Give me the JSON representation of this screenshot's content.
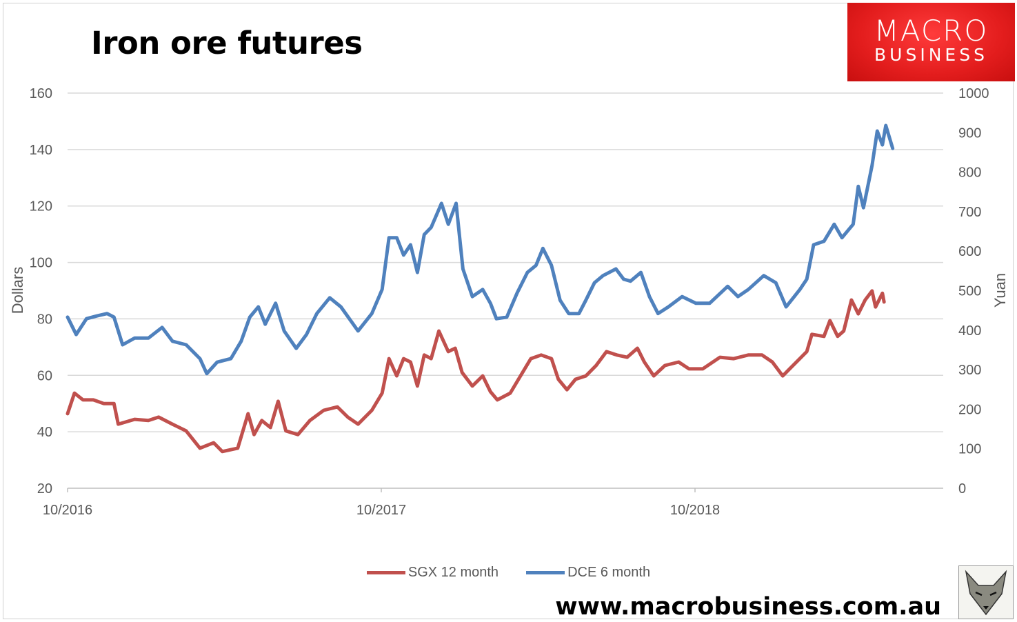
{
  "branding": {
    "logo_line1": "MACRO",
    "logo_line2": "BUSINESS",
    "url": "www.macrobusiness.com.au",
    "logo_color": "#e31d1d"
  },
  "chart_data": {
    "type": "line",
    "title": "Iron ore futures",
    "ylabel": "Dollars",
    "y2label": "Yuan",
    "ylim": [
      20,
      160
    ],
    "yticks": [
      20,
      40,
      60,
      80,
      100,
      120,
      140,
      160
    ],
    "y2lim": [
      0,
      1000
    ],
    "y2ticks": [
      0,
      100,
      200,
      300,
      400,
      500,
      600,
      700,
      800,
      900,
      1000
    ],
    "xticks": [
      {
        "date": "2016-10-01",
        "label": "10/2016"
      },
      {
        "date": "2017-10-01",
        "label": "10/2017"
      },
      {
        "date": "2018-10-01",
        "label": "10/2018"
      }
    ],
    "xlim": [
      "2016-10-01",
      "2019-11-01"
    ],
    "grid": true,
    "legend": "bottom",
    "series": [
      {
        "name": "SGX 12 month",
        "axis": "left",
        "color": "#c0504d",
        "points": [
          [
            "2016-10-01",
            46.4
          ],
          [
            "2016-10-09",
            53.7
          ],
          [
            "2016-10-19",
            51.3
          ],
          [
            "2016-10-31",
            51.3
          ],
          [
            "2016-11-12",
            50
          ],
          [
            "2016-11-24",
            50
          ],
          [
            "2016-11-29",
            42.7
          ],
          [
            "2016-12-18",
            44.4
          ],
          [
            "2017-01-03",
            44
          ],
          [
            "2017-01-15",
            45.2
          ],
          [
            "2017-01-31",
            42.7
          ],
          [
            "2017-02-16",
            40.3
          ],
          [
            "2017-03-04",
            34.2
          ],
          [
            "2017-03-20",
            36.1
          ],
          [
            "2017-03-30",
            33
          ],
          [
            "2017-04-17",
            34.2
          ],
          [
            "2017-04-29",
            46.4
          ],
          [
            "2017-05-06",
            39
          ],
          [
            "2017-05-15",
            44
          ],
          [
            "2017-05-25",
            41.5
          ],
          [
            "2017-06-03",
            50.8
          ],
          [
            "2017-06-12",
            40.3
          ],
          [
            "2017-06-26",
            39
          ],
          [
            "2017-07-10",
            44
          ],
          [
            "2017-07-26",
            47.6
          ],
          [
            "2017-08-11",
            48.8
          ],
          [
            "2017-08-23",
            45.2
          ],
          [
            "2017-09-04",
            42.7
          ],
          [
            "2017-09-20",
            47.6
          ],
          [
            "2017-10-02",
            53.7
          ],
          [
            "2017-10-10",
            65.9
          ],
          [
            "2017-10-19",
            59.8
          ],
          [
            "2017-10-27",
            65.9
          ],
          [
            "2017-11-04",
            64.7
          ],
          [
            "2017-11-12",
            56.2
          ],
          [
            "2017-11-20",
            67.2
          ],
          [
            "2017-11-28",
            65.9
          ],
          [
            "2017-12-07",
            75.7
          ],
          [
            "2017-12-18",
            68.4
          ],
          [
            "2017-12-26",
            69.6
          ],
          [
            "2018-01-03",
            61
          ],
          [
            "2018-01-15",
            56.2
          ],
          [
            "2018-01-27",
            59.8
          ],
          [
            "2018-02-05",
            54.2
          ],
          [
            "2018-02-13",
            51.3
          ],
          [
            "2018-02-28",
            53.7
          ],
          [
            "2018-03-12",
            59.8
          ],
          [
            "2018-03-24",
            65.9
          ],
          [
            "2018-04-05",
            67.2
          ],
          [
            "2018-04-17",
            65.9
          ],
          [
            "2018-04-25",
            58.6
          ],
          [
            "2018-05-05",
            54.9
          ],
          [
            "2018-05-15",
            58.6
          ],
          [
            "2018-05-27",
            59.8
          ],
          [
            "2018-06-08",
            63.5
          ],
          [
            "2018-06-20",
            68.4
          ],
          [
            "2018-07-02",
            67.2
          ],
          [
            "2018-07-14",
            66.4
          ],
          [
            "2018-07-26",
            69.6
          ],
          [
            "2018-08-03",
            64.7
          ],
          [
            "2018-08-14",
            59.8
          ],
          [
            "2018-08-27",
            63.5
          ],
          [
            "2018-09-12",
            64.7
          ],
          [
            "2018-09-24",
            62.3
          ],
          [
            "2018-10-10",
            62.3
          ],
          [
            "2018-10-30",
            66.4
          ],
          [
            "2018-11-15",
            65.9
          ],
          [
            "2018-12-02",
            67.2
          ],
          [
            "2018-12-18",
            67.2
          ],
          [
            "2018-12-30",
            64.7
          ],
          [
            "2019-01-11",
            59.8
          ],
          [
            "2019-01-27",
            64.7
          ],
          [
            "2019-02-08",
            68.4
          ],
          [
            "2019-02-14",
            74.5
          ],
          [
            "2019-02-28",
            73.8
          ],
          [
            "2019-03-07",
            79.4
          ],
          [
            "2019-03-16",
            73.8
          ],
          [
            "2019-03-23",
            75.7
          ],
          [
            "2019-04-01",
            86.7
          ],
          [
            "2019-04-09",
            81.8
          ],
          [
            "2019-04-17",
            86.7
          ],
          [
            "2019-04-25",
            89.9
          ],
          [
            "2019-04-29",
            84.2
          ],
          [
            "2019-05-07",
            89.1
          ],
          [
            "2019-05-09",
            86
          ]
        ]
      },
      {
        "name": "DCE 6 month",
        "axis": "right",
        "color": "#4f81bd",
        "points": [
          [
            "2016-10-01",
            433
          ],
          [
            "2016-10-11",
            389
          ],
          [
            "2016-10-23",
            429
          ],
          [
            "2016-11-04",
            436
          ],
          [
            "2016-11-16",
            442
          ],
          [
            "2016-11-24",
            433
          ],
          [
            "2016-12-04",
            363
          ],
          [
            "2016-12-18",
            380
          ],
          [
            "2017-01-03",
            380
          ],
          [
            "2017-01-19",
            407
          ],
          [
            "2017-01-31",
            372
          ],
          [
            "2017-02-16",
            363
          ],
          [
            "2017-03-04",
            328
          ],
          [
            "2017-03-12",
            290
          ],
          [
            "2017-03-24",
            319
          ],
          [
            "2017-04-09",
            328
          ],
          [
            "2017-04-21",
            372
          ],
          [
            "2017-05-01",
            433
          ],
          [
            "2017-05-11",
            459
          ],
          [
            "2017-05-19",
            415
          ],
          [
            "2017-05-31",
            468
          ],
          [
            "2017-06-10",
            398
          ],
          [
            "2017-06-24",
            354
          ],
          [
            "2017-07-06",
            389
          ],
          [
            "2017-07-18",
            442
          ],
          [
            "2017-08-02",
            482
          ],
          [
            "2017-08-15",
            459
          ],
          [
            "2017-09-04",
            398
          ],
          [
            "2017-09-20",
            442
          ],
          [
            "2017-10-02",
            503
          ],
          [
            "2017-10-10",
            634
          ],
          [
            "2017-10-19",
            634
          ],
          [
            "2017-10-27",
            590
          ],
          [
            "2017-11-04",
            616
          ],
          [
            "2017-11-12",
            546
          ],
          [
            "2017-11-20",
            642
          ],
          [
            "2017-11-28",
            660
          ],
          [
            "2017-12-10",
            721
          ],
          [
            "2017-12-18",
            668
          ],
          [
            "2017-12-27",
            721
          ],
          [
            "2018-01-04",
            555
          ],
          [
            "2018-01-15",
            485
          ],
          [
            "2018-01-27",
            503
          ],
          [
            "2018-02-05",
            468
          ],
          [
            "2018-02-12",
            429
          ],
          [
            "2018-02-24",
            433
          ],
          [
            "2018-03-08",
            494
          ],
          [
            "2018-03-20",
            546
          ],
          [
            "2018-03-30",
            564
          ],
          [
            "2018-04-07",
            607
          ],
          [
            "2018-04-17",
            564
          ],
          [
            "2018-04-27",
            476
          ],
          [
            "2018-05-07",
            442
          ],
          [
            "2018-05-19",
            442
          ],
          [
            "2018-05-27",
            476
          ],
          [
            "2018-06-06",
            520
          ],
          [
            "2018-06-16",
            538
          ],
          [
            "2018-07-01",
            555
          ],
          [
            "2018-07-10",
            529
          ],
          [
            "2018-07-18",
            524
          ],
          [
            "2018-07-30",
            546
          ],
          [
            "2018-08-09",
            485
          ],
          [
            "2018-08-19",
            442
          ],
          [
            "2018-08-31",
            459
          ],
          [
            "2018-09-16",
            485
          ],
          [
            "2018-10-02",
            468
          ],
          [
            "2018-10-18",
            468
          ],
          [
            "2018-11-08",
            511
          ],
          [
            "2018-11-20",
            485
          ],
          [
            "2018-12-02",
            503
          ],
          [
            "2018-12-20",
            538
          ],
          [
            "2019-01-03",
            520
          ],
          [
            "2019-01-15",
            459
          ],
          [
            "2019-01-31",
            503
          ],
          [
            "2019-02-08",
            529
          ],
          [
            "2019-02-16",
            616
          ],
          [
            "2019-02-28",
            625
          ],
          [
            "2019-03-12",
            668
          ],
          [
            "2019-03-21",
            634
          ],
          [
            "2019-04-03",
            668
          ],
          [
            "2019-04-09",
            764
          ],
          [
            "2019-04-15",
            710
          ],
          [
            "2019-04-25",
            817
          ],
          [
            "2019-05-01",
            904
          ],
          [
            "2019-05-07",
            869
          ],
          [
            "2019-05-11",
            918
          ],
          [
            "2019-05-19",
            860
          ]
        ]
      }
    ]
  }
}
